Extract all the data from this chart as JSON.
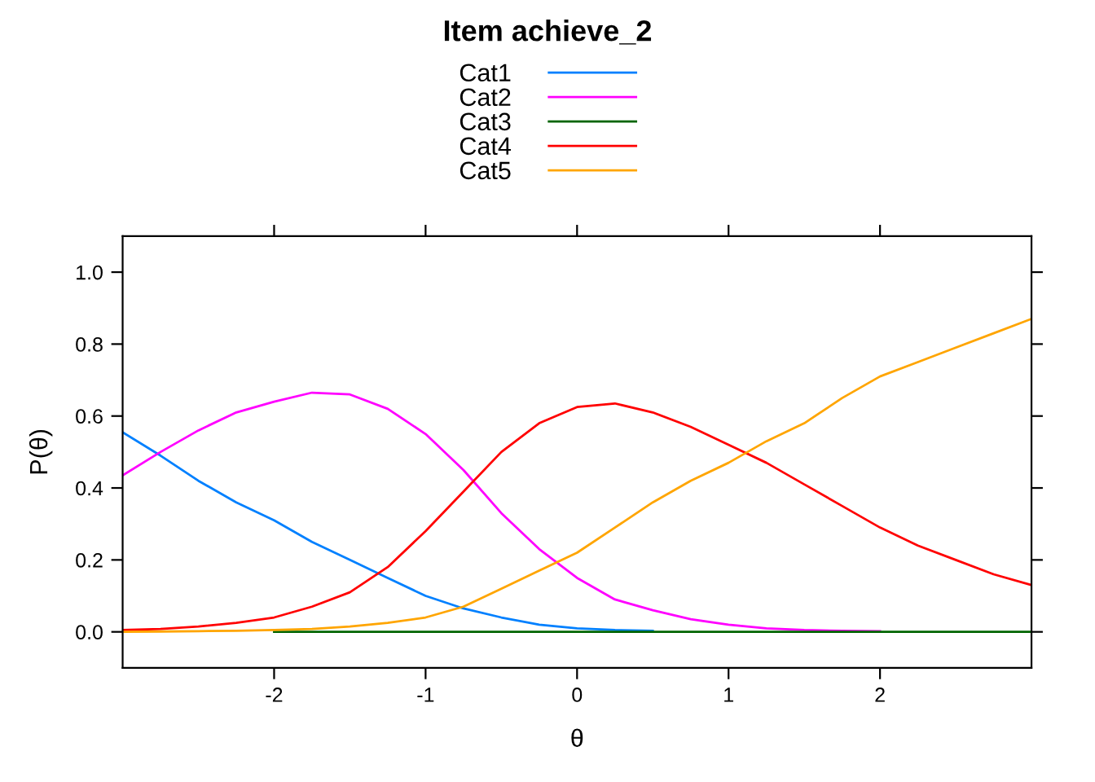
{
  "chart_data": {
    "type": "line",
    "title": "Item achieve_2",
    "xlabel": "θ",
    "ylabel": "P(θ)",
    "x": [
      -3,
      -2.75,
      -2.5,
      -2.25,
      -2,
      -1.75,
      -1.5,
      -1.25,
      -1,
      -0.75,
      -0.5,
      -0.25,
      0,
      0.25,
      0.5,
      0.75,
      1,
      1.25,
      1.5,
      1.75,
      2,
      2.25,
      2.5,
      2.75,
      3
    ],
    "series": [
      {
        "name": "Cat1",
        "color": "#0080ff",
        "values": [
          0.555,
          0.49,
          0.42,
          0.36,
          0.31,
          0.25,
          0.2,
          0.15,
          0.1,
          0.065,
          0.04,
          0.02,
          0.01,
          0.005,
          0.003,
          null,
          null,
          null,
          null,
          null,
          null,
          null,
          null,
          null,
          null
        ]
      },
      {
        "name": "Cat2",
        "color": "#ff00ff",
        "values": [
          0.435,
          0.5,
          0.56,
          0.61,
          0.64,
          0.665,
          0.66,
          0.62,
          0.55,
          0.45,
          0.33,
          0.23,
          0.15,
          0.09,
          0.06,
          0.035,
          0.02,
          0.01,
          0.005,
          0.003,
          0.002,
          null,
          null,
          null,
          null
        ]
      },
      {
        "name": "Cat3",
        "color": "#006400",
        "values": [
          null,
          null,
          null,
          null,
          0,
          0,
          0,
          0,
          0,
          0,
          0,
          0,
          0,
          0,
          0,
          0,
          0,
          0,
          0,
          0,
          0,
          0,
          0,
          0,
          0
        ]
      },
      {
        "name": "Cat4",
        "color": "#ff0000",
        "values": [
          0.005,
          0.008,
          0.015,
          0.025,
          0.04,
          0.07,
          0.11,
          0.18,
          0.28,
          0.39,
          0.5,
          0.58,
          0.625,
          0.635,
          0.61,
          0.57,
          0.52,
          0.47,
          0.41,
          0.35,
          0.29,
          0.24,
          0.2,
          0.16,
          0.13
        ]
      },
      {
        "name": "Cat5",
        "color": "#ffa500",
        "values": [
          0,
          0.001,
          0.002,
          0.003,
          0.005,
          0.008,
          0.015,
          0.025,
          0.04,
          0.07,
          0.12,
          0.17,
          0.22,
          0.29,
          0.36,
          0.42,
          0.47,
          0.53,
          0.58,
          0.65,
          0.71,
          0.75,
          0.79,
          0.83,
          0.87
        ]
      }
    ],
    "xlim": [
      -3,
      3
    ],
    "xticks": [
      -2,
      -1,
      0,
      1,
      2
    ],
    "ylim": [
      -0.1,
      1.1
    ],
    "yticks": [
      {
        "value": 0,
        "label": "0.0"
      },
      {
        "value": 0.2,
        "label": "0.2"
      },
      {
        "value": 0.4,
        "label": "0.4"
      },
      {
        "value": 0.6,
        "label": "0.6"
      },
      {
        "value": 0.8,
        "label": "0.8"
      },
      {
        "value": 1,
        "label": "1.0"
      }
    ],
    "grid": false,
    "legend": "top",
    "marker": "none",
    "line_style": "solid"
  }
}
